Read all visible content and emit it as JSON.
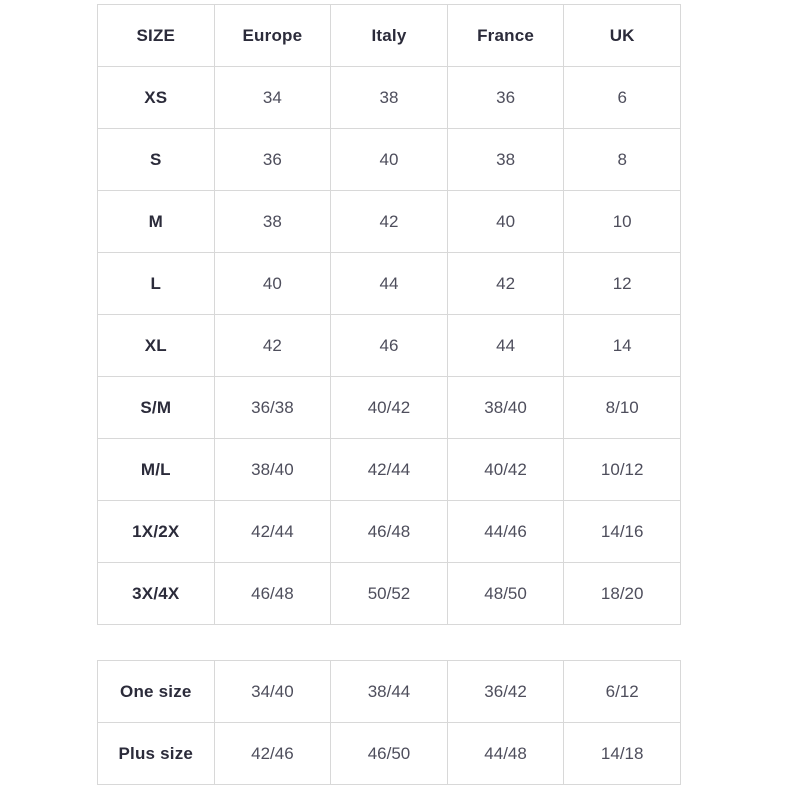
{
  "colors": {
    "background": "#ffffff",
    "border": "#d8d8d8",
    "label_text": "#2b2b3a",
    "value_text": "#4e4e5c"
  },
  "size_table": {
    "headers": [
      "SIZE",
      "Europe",
      "Italy",
      "France",
      "UK"
    ],
    "rows": [
      {
        "label": "XS",
        "values": [
          "34",
          "38",
          "36",
          "6"
        ]
      },
      {
        "label": "S",
        "values": [
          "36",
          "40",
          "38",
          "8"
        ]
      },
      {
        "label": "M",
        "values": [
          "38",
          "42",
          "40",
          "10"
        ]
      },
      {
        "label": "L",
        "values": [
          "40",
          "44",
          "42",
          "12"
        ]
      },
      {
        "label": "XL",
        "values": [
          "42",
          "46",
          "44",
          "14"
        ]
      },
      {
        "label": "S/M",
        "values": [
          "36/38",
          "40/42",
          "38/40",
          "8/10"
        ]
      },
      {
        "label": "M/L",
        "values": [
          "38/40",
          "42/44",
          "40/42",
          "10/12"
        ]
      },
      {
        "label": "1X/2X",
        "values": [
          "42/44",
          "46/48",
          "44/46",
          "14/16"
        ]
      },
      {
        "label": "3X/4X",
        "values": [
          "46/48",
          "50/52",
          "48/50",
          "18/20"
        ]
      }
    ]
  },
  "special_table": {
    "rows": [
      {
        "label": "One size",
        "values": [
          "34/40",
          "38/44",
          "36/42",
          "6/12"
        ]
      },
      {
        "label": "Plus size",
        "values": [
          "42/46",
          "46/50",
          "44/48",
          "14/18"
        ]
      }
    ]
  }
}
